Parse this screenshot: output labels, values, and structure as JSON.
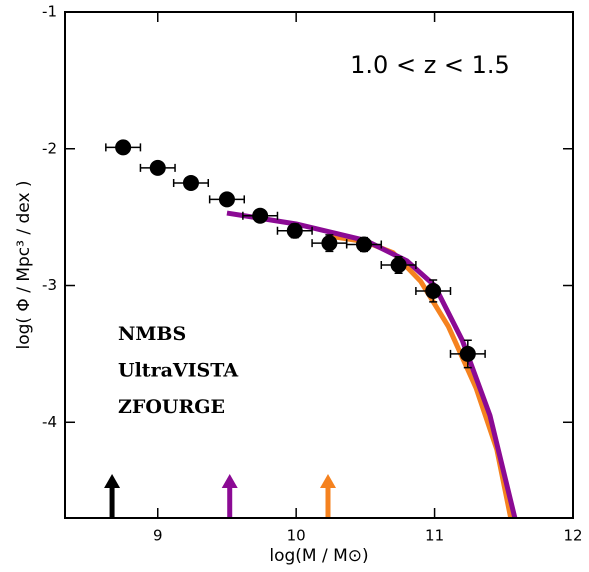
{
  "chart_data": {
    "type": "scatter",
    "annotation": "1.0 < z < 1.5",
    "xlabel": "log(M / M⊙)",
    "ylabel": "log( Φ / Mpc³ / dex )",
    "xlim": [
      8.33,
      12.0
    ],
    "ylim": [
      -4.7,
      -1
    ],
    "xticks": [
      9,
      10,
      11,
      12
    ],
    "yticks": [
      -1,
      -2,
      -3,
      -4
    ],
    "series": [
      {
        "name": "NMBS",
        "color": "#f5821f",
        "kind": "line",
        "x": [
          10.25,
          10.5,
          10.7,
          10.9,
          11.1,
          11.3,
          11.45,
          11.55
        ],
        "values": [
          -2.64,
          -2.68,
          -2.76,
          -2.97,
          -3.3,
          -3.75,
          -4.2,
          -4.7
        ],
        "mass_limit": 10.23
      },
      {
        "name": "UltraVISTA",
        "color": "#8b0a94",
        "kind": "line",
        "x": [
          9.5,
          10.0,
          10.5,
          10.8,
          11.0,
          11.2,
          11.4,
          11.58
        ],
        "values": [
          -2.47,
          -2.55,
          -2.67,
          -2.82,
          -3.0,
          -3.4,
          -3.95,
          -4.7
        ],
        "mass_limit": 9.52
      },
      {
        "name": "ZFOURGE",
        "color": "#000000",
        "kind": "points",
        "x": [
          8.75,
          9.0,
          9.24,
          9.5,
          9.74,
          9.99,
          10.24,
          10.49,
          10.74,
          10.99,
          11.24
        ],
        "values": [
          -1.99,
          -2.14,
          -2.25,
          -2.37,
          -2.49,
          -2.6,
          -2.69,
          -2.7,
          -2.85,
          -3.04,
          -3.5
        ],
        "xerr": [
          0.125,
          0.125,
          0.125,
          0.125,
          0.125,
          0.125,
          0.125,
          0.125,
          0.125,
          0.125,
          0.125
        ],
        "yerr": [
          0.02,
          0.02,
          0.02,
          0.03,
          0.04,
          0.05,
          0.06,
          0.05,
          0.06,
          0.08,
          0.1
        ],
        "mass_limit": 8.67
      }
    ]
  }
}
